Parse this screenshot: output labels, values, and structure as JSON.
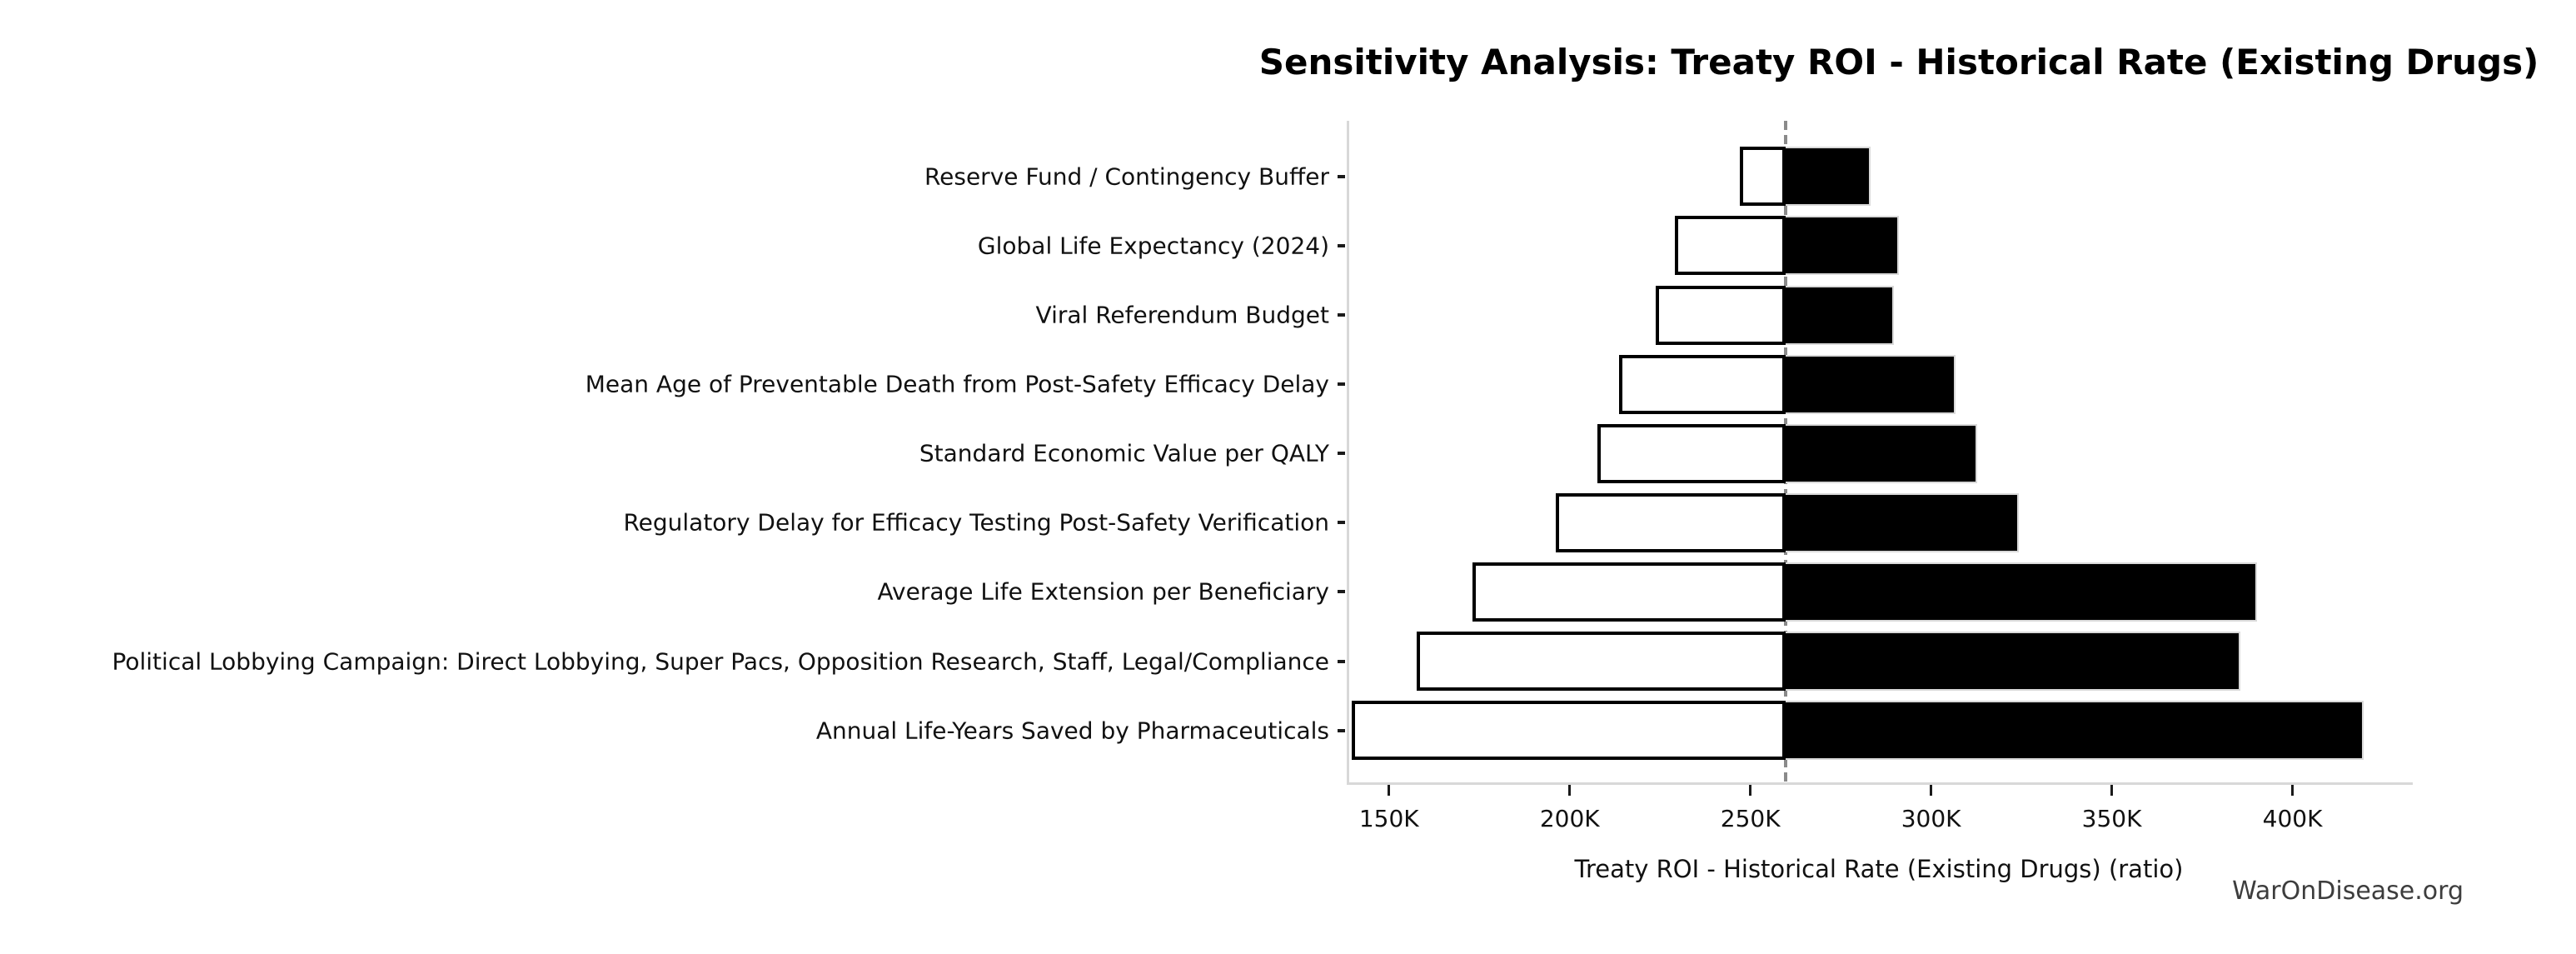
{
  "title": "Sensitivity Analysis: Treaty ROI - Historical Rate (Existing Drugs)",
  "watermark": "WarOnDisease.org",
  "chart_data": {
    "type": "bar",
    "subtype": "tornado-sensitivity",
    "orientation": "horizontal",
    "title": "Sensitivity Analysis: Treaty ROI - Historical Rate (Existing Drugs)",
    "xlabel": "Treaty ROI - Historical Rate (Existing Drugs) (ratio)",
    "ylabel": "",
    "value_unit": "thousands (K) of ratio units",
    "baseline_value": 259,
    "xlim": [
      138.3,
      432.6
    ],
    "grid": false,
    "legend": false,
    "x_ticks": [
      {
        "value": 150,
        "label": "150K"
      },
      {
        "value": 200,
        "label": "200K"
      },
      {
        "value": 250,
        "label": "250K"
      },
      {
        "value": 300,
        "label": "300K"
      },
      {
        "value": 350,
        "label": "350K"
      },
      {
        "value": 400,
        "label": "400K"
      }
    ],
    "categories": [
      "Reserve Fund / Contingency Buffer",
      "Global Life Expectancy (2024)",
      "Viral Referendum Budget",
      "Mean Age of Preventable Death from Post-Safety Efficacy Delay",
      "Standard Economic Value per QALY",
      "Regulatory Delay for Efficacy Testing Post-Safety Verification",
      "Average Life Extension per Beneficiary",
      "Political Lobbying Campaign: Direct Lobbying, Super Pacs, Opposition Research, Staff, Legal/Compliance",
      "Annual Life-Years Saved by Pharmaceuticals"
    ],
    "series": [
      {
        "name": "low_end",
        "bar_color": "#ffffff",
        "edge_color": "#000000",
        "values": [
          246.5,
          228.5,
          223,
          213,
          207,
          195.5,
          172.5,
          157,
          139
        ]
      },
      {
        "name": "high_end",
        "bar_color": "#000000",
        "edge_color": "#d9d9d9",
        "values": [
          282.5,
          290.5,
          289,
          306,
          312,
          323.5,
          389.5,
          385,
          419
        ]
      }
    ],
    "baseline_line": {
      "style": "dashed",
      "color": "#8a8a8a"
    }
  }
}
